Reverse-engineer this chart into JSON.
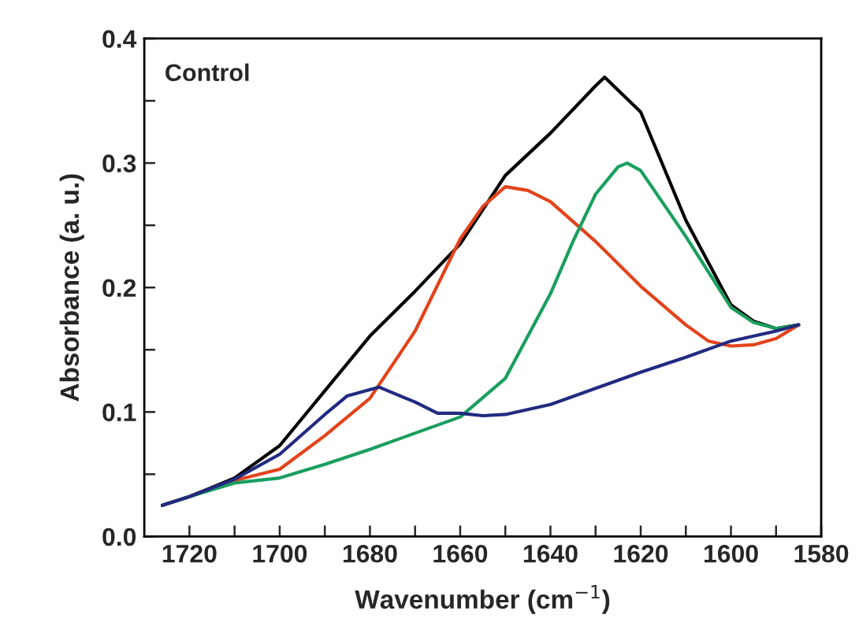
{
  "chart_data": {
    "type": "line",
    "xlabel": "Wavenumber (cm$^{−1}$)",
    "ylabel": "Absorbance (a. u.)",
    "annotations": [
      "Control"
    ],
    "xlim": [
      1730,
      1580
    ],
    "ylim": [
      0.0,
      0.4
    ],
    "xticks": [
      1720,
      {
        "value": 1710,
        "label": null
      },
      1700,
      {
        "value": 1690,
        "label": null
      },
      1680,
      {
        "value": 1670,
        "label": null
      },
      1660,
      {
        "value": 1650,
        "label": null
      },
      1640,
      {
        "value": 1630,
        "label": null
      },
      1620,
      {
        "value": 1610,
        "label": null
      },
      1600,
      {
        "value": 1590,
        "label": null
      },
      1580
    ],
    "yticks": [
      {
        "value": 0.0,
        "label": "0.0"
      },
      {
        "value": 0.05,
        "label": null
      },
      0.1,
      {
        "value": 0.15,
        "label": null
      },
      0.2,
      {
        "value": 0.25,
        "label": null
      },
      0.3,
      {
        "value": 0.35,
        "label": null
      },
      0.4
    ],
    "grid": false,
    "marker": "none",
    "line_style": "solid",
    "series": [
      {
        "color": "#000000",
        "x": [
          1726,
          1720,
          1710,
          1700,
          1690,
          1680,
          1670,
          1660,
          1650,
          1640,
          1630,
          1628,
          1620,
          1610,
          1600,
          1595,
          1590,
          1585
        ],
        "values": [
          0.025,
          0.032,
          0.047,
          0.073,
          0.117,
          0.161,
          0.197,
          0.235,
          0.29,
          0.324,
          0.362,
          0.369,
          0.341,
          0.254,
          0.186,
          0.173,
          0.167,
          0.17
        ]
      },
      {
        "color": "#e2431c",
        "x": [
          1726,
          1720,
          1710,
          1700,
          1690,
          1680,
          1670,
          1660,
          1655,
          1650,
          1645,
          1640,
          1630,
          1620,
          1610,
          1605,
          1600,
          1595,
          1590,
          1585
        ],
        "values": [
          0.025,
          0.032,
          0.045,
          0.054,
          0.081,
          0.111,
          0.165,
          0.239,
          0.265,
          0.281,
          0.278,
          0.269,
          0.237,
          0.201,
          0.17,
          0.157,
          0.153,
          0.154,
          0.159,
          0.17
        ]
      },
      {
        "color": "#1a9e5e",
        "x": [
          1726,
          1720,
          1710,
          1700,
          1690,
          1680,
          1670,
          1660,
          1650,
          1640,
          1635,
          1630,
          1625,
          1623,
          1620,
          1610,
          1600,
          1595,
          1590,
          1585
        ],
        "values": [
          0.025,
          0.032,
          0.043,
          0.047,
          0.058,
          0.07,
          0.083,
          0.096,
          0.127,
          0.195,
          0.237,
          0.275,
          0.297,
          0.3,
          0.294,
          0.241,
          0.184,
          0.172,
          0.167,
          0.17
        ]
      },
      {
        "color": "#222a80",
        "x": [
          1726,
          1720,
          1710,
          1700,
          1690,
          1685,
          1678,
          1670,
          1665,
          1660,
          1655,
          1650,
          1640,
          1630,
          1620,
          1610,
          1600,
          1590,
          1585
        ],
        "values": [
          0.025,
          0.032,
          0.046,
          0.066,
          0.098,
          0.113,
          0.12,
          0.108,
          0.099,
          0.099,
          0.097,
          0.098,
          0.106,
          0.119,
          0.132,
          0.144,
          0.157,
          0.165,
          0.17
        ]
      }
    ]
  }
}
